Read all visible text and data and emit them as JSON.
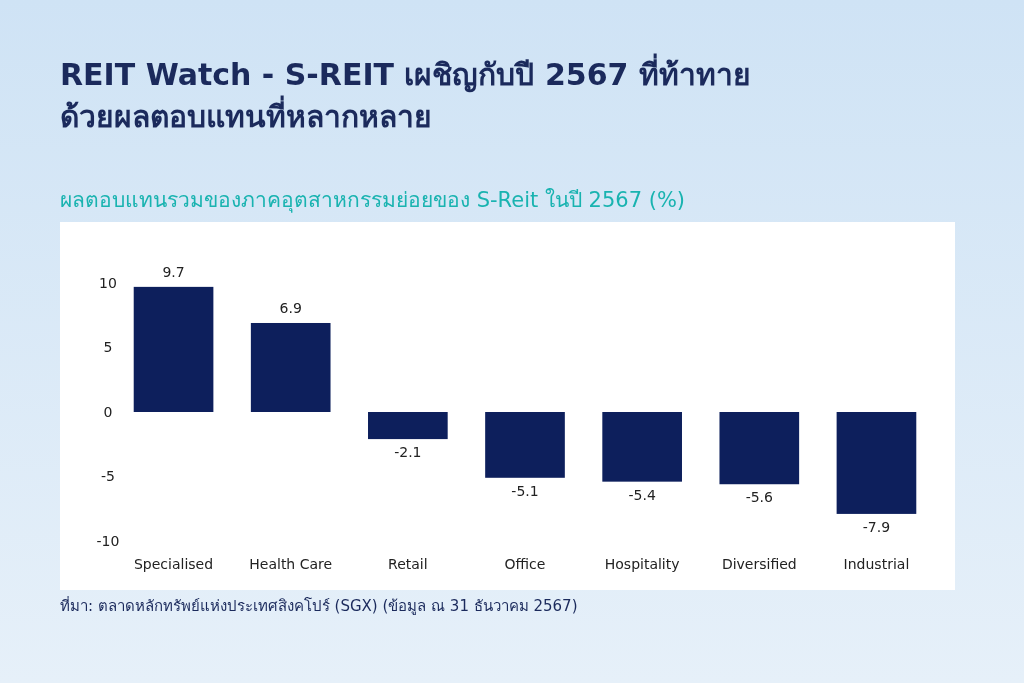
{
  "chart_data": {
    "type": "bar",
    "title": "REIT Watch - S-REIT เผชิญกับปี 2567 ที่ท้าทาย\nด้วยผลตอบแทนที่หลากหลาย",
    "subtitle": "ผลตอบแทนรวมของภาคอุตสาหกรรมย่อยของ S-Reit ในปี 2567 (%)",
    "categories": [
      "Specialised",
      "Health Care",
      "Retail",
      "Office",
      "Hospitality",
      "Diversified",
      "Industrial"
    ],
    "values": [
      9.7,
      6.9,
      -2.1,
      -5.1,
      -5.4,
      -5.6,
      -7.9
    ],
    "color": "#0d1f5c",
    "ylim": [
      -10,
      10
    ],
    "yticks": [
      -10,
      -5,
      0,
      5,
      10
    ],
    "grid": false,
    "data_labels": true,
    "annotations": [
      "ที่มา: ตลาดหลักทรัพย์แห่งประเทศสิงคโปร์ (SGX) (ข้อมูล ณ 31 ธันวาคม 2567)"
    ]
  }
}
